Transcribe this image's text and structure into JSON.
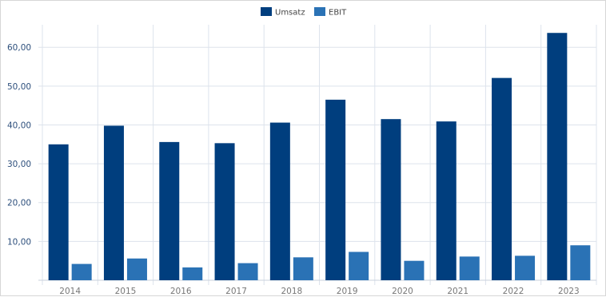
{
  "chart_data": {
    "type": "bar",
    "categories": [
      "2014",
      "2015",
      "2016",
      "2017",
      "2018",
      "2019",
      "2020",
      "2021",
      "2022",
      "2023"
    ],
    "series": [
      {
        "name": "Umsatz",
        "color": "#003e7e",
        "values": [
          35.0,
          39.8,
          35.6,
          35.3,
          40.6,
          46.5,
          41.5,
          40.9,
          52.1,
          63.7
        ]
      },
      {
        "name": "EBIT",
        "color": "#2a72b5",
        "values": [
          4.2,
          5.6,
          3.3,
          4.4,
          5.9,
          7.3,
          5.0,
          6.1,
          6.3,
          9.0
        ]
      }
    ],
    "yticks": [
      "10,00",
      "20,00",
      "30,00",
      "40,00",
      "50,00",
      "60,00"
    ],
    "ylim": [
      0,
      67
    ],
    "grid": true,
    "legend": "top-center",
    "title": "",
    "xlabel": "",
    "ylabel": ""
  }
}
